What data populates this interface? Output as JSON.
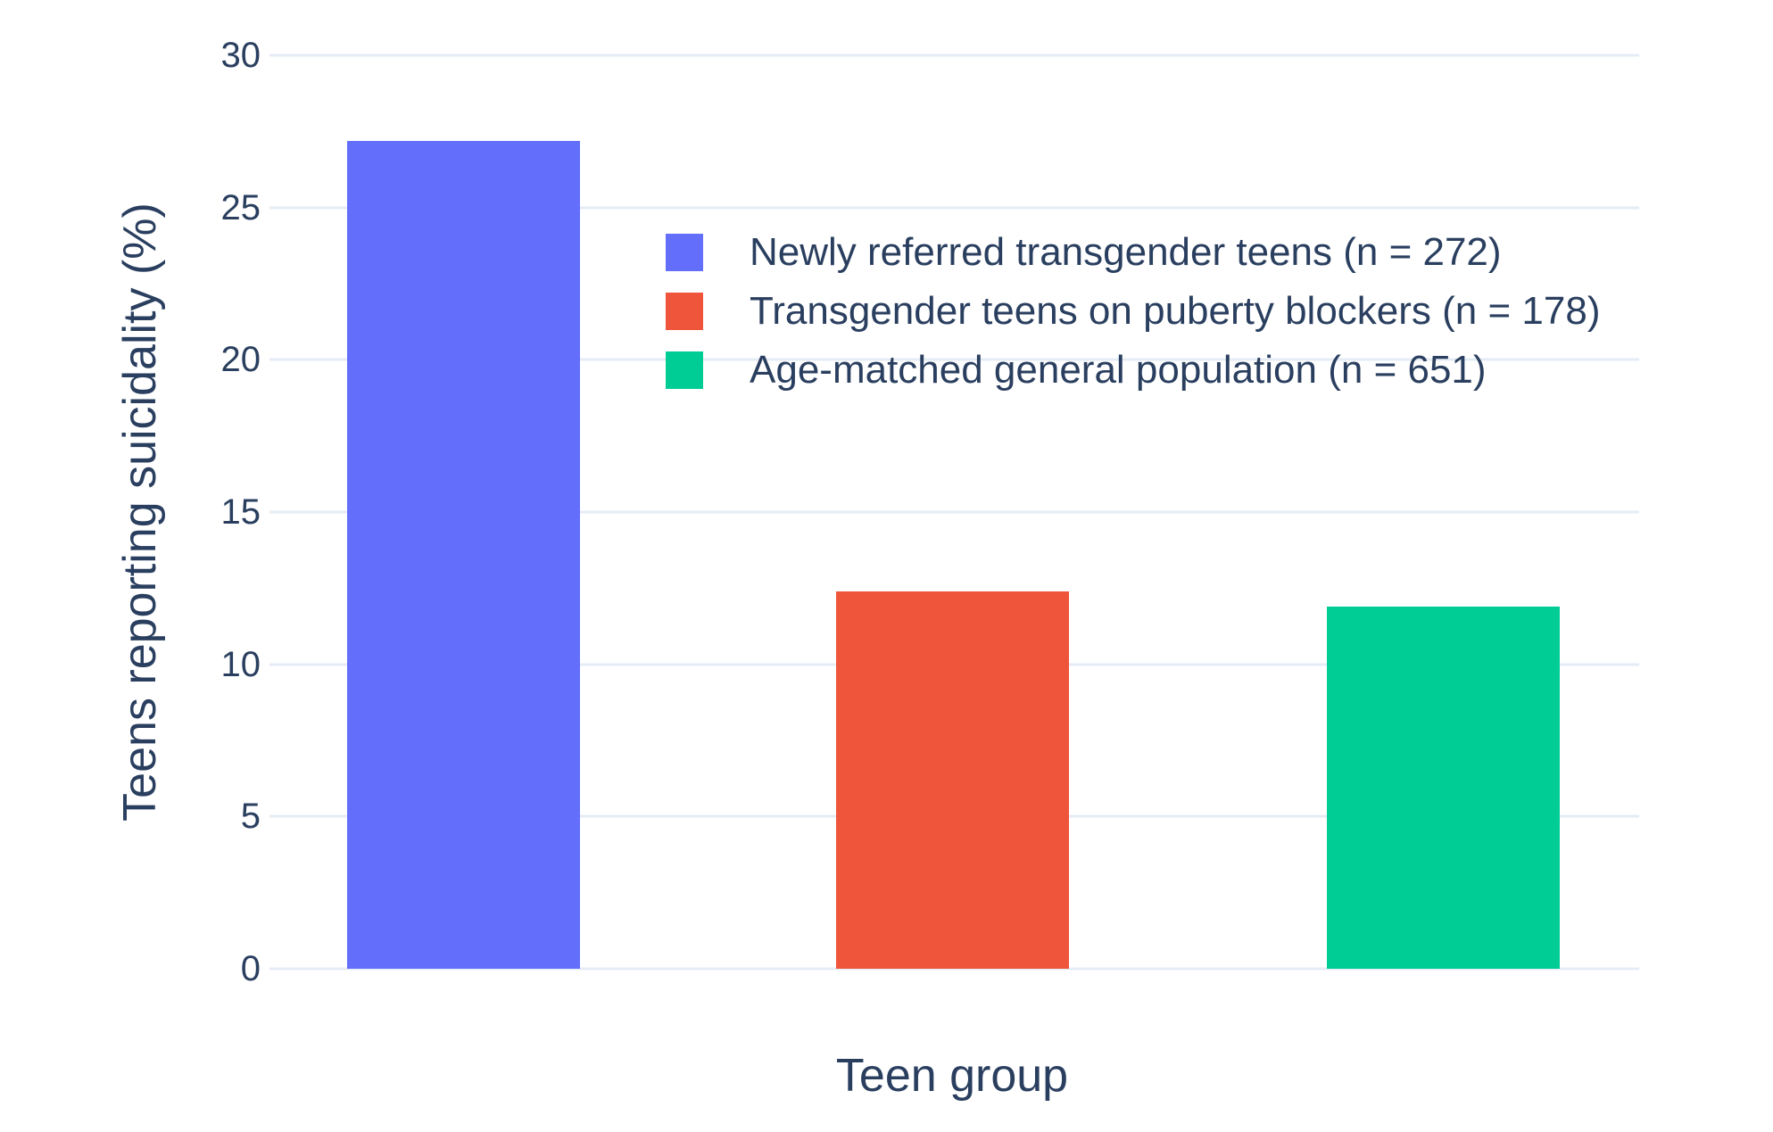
{
  "chart_data": {
    "type": "bar",
    "title": "",
    "xlabel": "Teen group",
    "ylabel": "Teens reporting suicidality (%)",
    "categories": [
      "Newly referred transgender teens (n = 272)",
      "Transgender teens on puberty blockers (n = 178)",
      "Age-matched general population (n = 651)"
    ],
    "values": [
      27.2,
      12.4,
      11.9
    ],
    "colors": [
      "#636EFA",
      "#EF553B",
      "#00CC96"
    ],
    "ylim": [
      0,
      30
    ],
    "yticks": [
      0,
      5,
      10,
      15,
      20,
      25,
      30
    ],
    "grid": true,
    "grid_color": "#E5ECF6",
    "text_color": "#2a3f5f",
    "background": "#FFFFFF",
    "legend_position": "inside-top-center",
    "bar_centers_frac": [
      0.142,
      0.499,
      0.857
    ],
    "bar_width_frac": 0.17
  }
}
